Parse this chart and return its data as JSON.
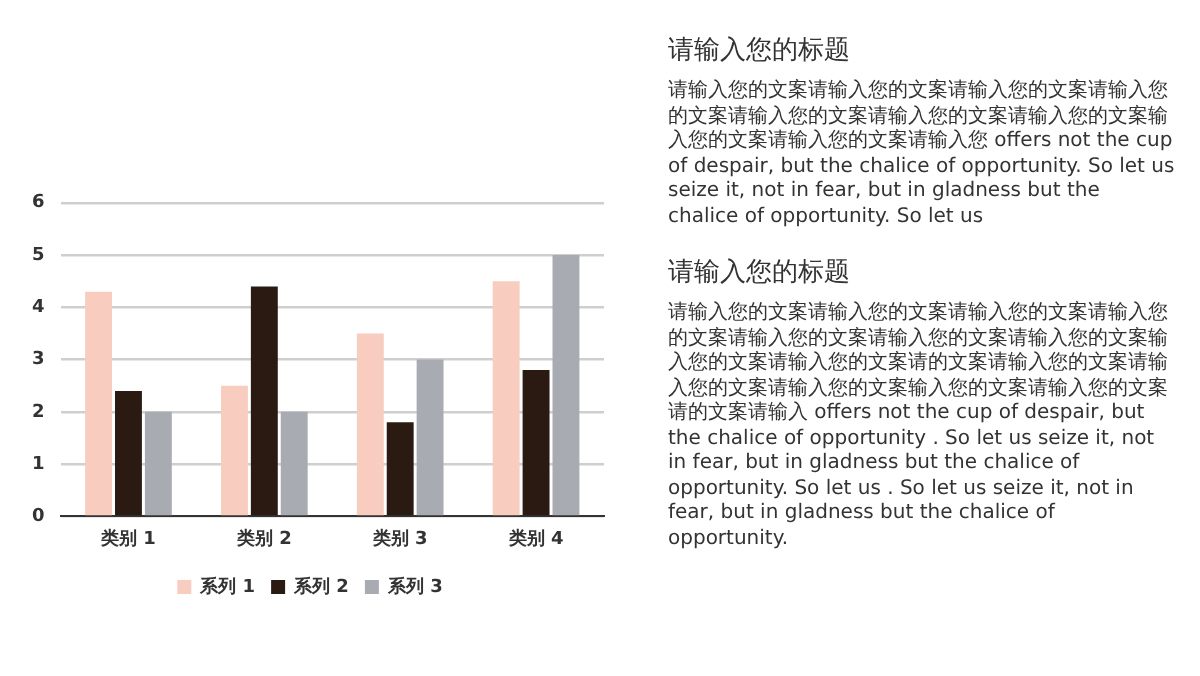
{
  "chart_data": {
    "type": "bar",
    "categories": [
      "类别 1",
      "类别 2",
      "类别 3",
      "类别 4"
    ],
    "series": [
      {
        "name": "系列 1",
        "color": "#f8cdbf",
        "values": [
          4.3,
          2.5,
          3.5,
          4.5
        ]
      },
      {
        "name": "系列 2",
        "color": "#2b1a12",
        "values": [
          2.4,
          4.4,
          1.8,
          2.8
        ]
      },
      {
        "name": "系列 3",
        "color": "#a9abb3",
        "values": [
          2,
          2,
          3,
          5
        ]
      }
    ],
    "ylim": [
      0,
      6
    ],
    "yticks": [
      0,
      1,
      2,
      3,
      4,
      5,
      6
    ],
    "grid": "y",
    "legend": "bottom",
    "annotations": [
      "请输入您的标题",
      "请输入您的文案请输入您的文案请输入您的文案请输入您的文案请输入您的文案请输入您的文案请输入您的文案输入您的文案请输入您的文案请输入您 offers not the cup of despair, but the chalice of opportunity. So let us seize it, not in fear, but in gladness but the chalice of opportunity. So let us",
      "请输入您的标题",
      "请输入您的文案请输入您的文案请输入您的文案请输入您的文案请输入您的文案请输入您的文案请输入您的文案输入您的文案请输入您的文案请的文案请输入您的文案请输入您的文案请输入您的文案输入您的文案请输入您的文案请的文案请输入 offers not the cup of despair, but the chalice of opportunity . So let us seize it, not in fear, but in gladness but the chalice of opportunity. So let us . So let us seize it, not in fear, but in gladness but the chalice of opportunity."
    ]
  }
}
